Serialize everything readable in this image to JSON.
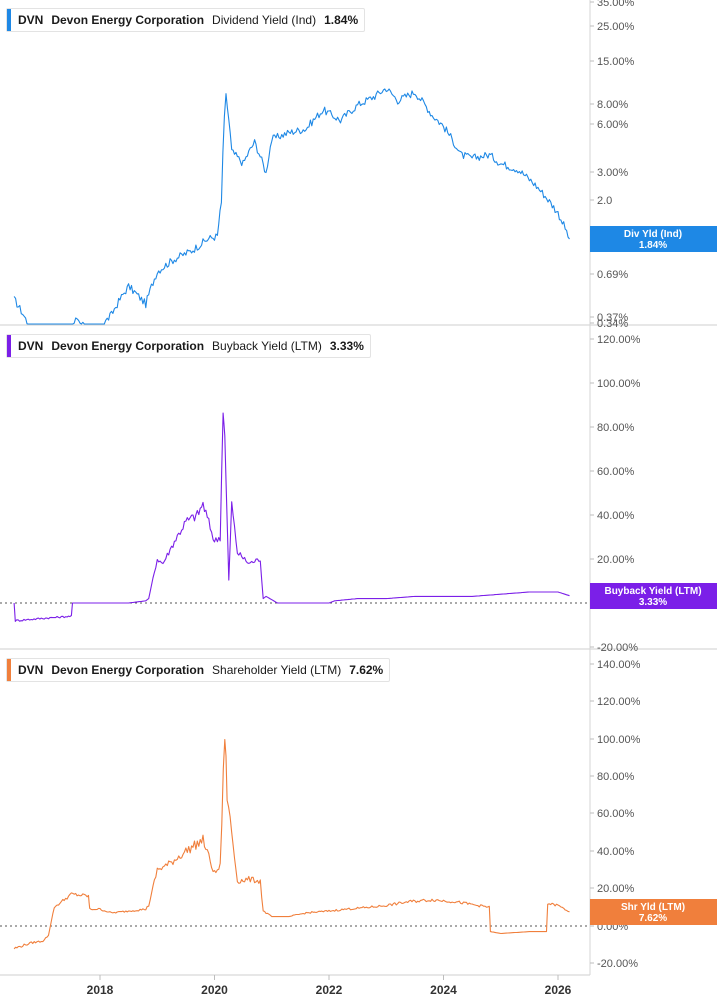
{
  "panels": [
    {
      "ticker": "DVN",
      "company": "Devon Energy Corporation",
      "metric": "Dividend Yield (Ind)",
      "value": "1.84%",
      "color": "#1e88e5",
      "badge_line1": "Div Yld (Ind)",
      "badge_line2": "1.84%",
      "axis_ticks": [
        "35.00%",
        "25.00%",
        "15.00%",
        "8.00%",
        "6.00%",
        "3.00%",
        "2.0",
        "1.00%",
        "0.69%",
        "0.37%",
        "0.34%"
      ]
    },
    {
      "ticker": "DVN",
      "company": "Devon Energy Corporation",
      "metric": "Buyback Yield (LTM)",
      "value": "3.33%",
      "color": "#7b1fe8",
      "badge_line1": "Buyback Yield (LTM)",
      "badge_line2": "3.33%",
      "axis_ticks": [
        "120.00%",
        "100.00%",
        "80.00%",
        "60.00%",
        "40.00%",
        "20.00%",
        "-20.00%"
      ]
    },
    {
      "ticker": "DVN",
      "company": "Devon Energy Corporation",
      "metric": "Shareholder Yield (LTM)",
      "value": "7.62%",
      "color": "#f07f3c",
      "badge_line1": "Shr Yld (LTM)",
      "badge_line2": "7.62%",
      "axis_ticks": [
        "140.00%",
        "120.00%",
        "100.00%",
        "80.00%",
        "60.00%",
        "40.00%",
        "20.00%",
        "0.00%",
        "-20.00%"
      ]
    }
  ],
  "x_axis_labels": [
    "2018",
    "2020",
    "2022",
    "2024",
    "2026"
  ],
  "chart_data": [
    {
      "type": "line",
      "title": "DVN Devon Energy Corporation Dividend Yield (Ind) 1.84%",
      "y_scale": "log",
      "y_unit": "%",
      "ylim": [
        0.34,
        35
      ],
      "series": [
        {
          "name": "Dividend Yield (Ind)",
          "x": [
            2016.5,
            2016.8,
            2017.0,
            2017.2,
            2017.4,
            2017.6,
            2017.9,
            2018.2,
            2018.5,
            2018.8,
            2019.0,
            2019.3,
            2019.6,
            2019.9,
            2020.05,
            2020.12,
            2020.2,
            2020.3,
            2020.5,
            2020.7,
            2020.9,
            2021.0,
            2021.3,
            2021.6,
            2021.9,
            2022.2,
            2022.5,
            2022.8,
            2023.0,
            2023.2,
            2023.5,
            2023.8,
            2024.0,
            2024.3,
            2024.5,
            2024.8,
            2025.0,
            2025.3,
            2025.6,
            2025.8,
            2026.0,
            2026.2
          ],
          "values": [
            0.9,
            0.62,
            0.55,
            0.5,
            0.58,
            0.72,
            0.58,
            0.75,
            1.05,
            0.85,
            1.25,
            1.45,
            1.6,
            1.85,
            1.9,
            2.8,
            10.0,
            5.2,
            4.5,
            5.8,
            4.0,
            6.0,
            6.5,
            6.8,
            8.5,
            7.5,
            9.0,
            10.0,
            11.0,
            9.5,
            10.5,
            8.0,
            7.0,
            5.0,
            4.8,
            5.0,
            4.5,
            4.2,
            3.5,
            3.0,
            2.5,
            1.84
          ]
        }
      ]
    },
    {
      "type": "line",
      "title": "DVN Devon Energy Corporation Buyback Yield (LTM) 3.33%",
      "y_unit": "%",
      "ylim": [
        -20,
        120
      ],
      "series": [
        {
          "name": "Buyback Yield (LTM)",
          "x": [
            2016.5,
            2016.52,
            2017.0,
            2017.5,
            2017.52,
            2018.0,
            2018.5,
            2018.8,
            2018.85,
            2019.0,
            2019.1,
            2019.3,
            2019.5,
            2019.7,
            2019.8,
            2020.0,
            2020.1,
            2020.15,
            2020.18,
            2020.25,
            2020.3,
            2020.4,
            2020.6,
            2020.8,
            2020.85,
            2020.9,
            2021.1,
            2021.5,
            2022.0,
            2022.1,
            2022.5,
            2023.0,
            2023.5,
            2024.0,
            2024.5,
            2025.0,
            2025.5,
            2026.0,
            2026.2
          ],
          "values": [
            0,
            -8,
            -7,
            -6,
            0,
            0,
            0,
            1,
            2,
            20,
            18,
            28,
            37,
            40,
            45,
            28,
            30,
            90,
            75,
            10,
            45,
            23,
            18,
            20,
            2,
            3,
            0,
            0,
            0,
            1,
            2,
            2,
            3,
            3,
            3,
            4,
            5,
            5,
            3.33
          ]
        }
      ]
    },
    {
      "type": "line",
      "title": "DVN Devon Energy Corporation Shareholder Yield (LTM) 7.62%",
      "y_unit": "%",
      "ylim": [
        -20,
        140
      ],
      "series": [
        {
          "name": "Shareholder Yield (LTM)",
          "x": [
            2016.5,
            2016.8,
            2017.0,
            2017.1,
            2017.2,
            2017.5,
            2017.8,
            2017.82,
            2018.0,
            2018.2,
            2018.5,
            2018.8,
            2018.85,
            2019.0,
            2019.2,
            2019.5,
            2019.8,
            2020.0,
            2020.1,
            2020.18,
            2020.22,
            2020.3,
            2020.4,
            2020.6,
            2020.8,
            2020.85,
            2021.0,
            2021.3,
            2021.6,
            2022.0,
            2022.3,
            2022.7,
            2023.0,
            2023.4,
            2023.8,
            2024.2,
            2024.6,
            2024.8,
            2024.82,
            2025.0,
            2025.5,
            2025.8,
            2025.82,
            2026.0,
            2026.2
          ],
          "values": [
            -12,
            -9,
            -8,
            -5,
            10,
            17,
            16,
            9,
            9,
            7,
            8,
            9,
            11,
            30,
            33,
            40,
            46,
            28,
            32,
            104,
            70,
            50,
            24,
            25,
            24,
            8,
            5,
            5,
            7,
            8,
            9,
            10,
            11,
            13,
            14,
            13,
            11,
            10,
            -3,
            -4,
            -3,
            -3,
            12,
            11,
            7.62
          ]
        }
      ]
    }
  ]
}
